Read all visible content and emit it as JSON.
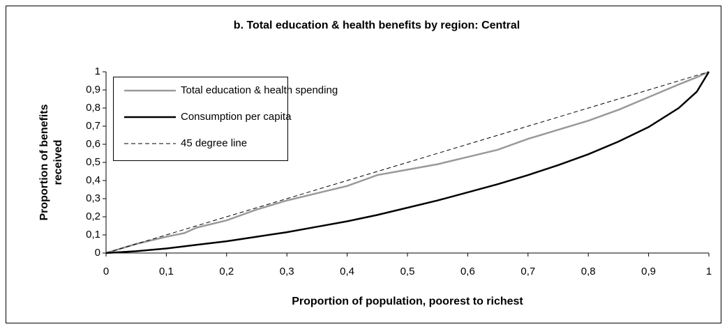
{
  "chart_data": {
    "type": "line",
    "title": "b. Total education & health benefits by region: Central",
    "xlabel": "Proportion of population, poorest to richest",
    "ylabel": [
      "Proportion of benefits",
      "received"
    ],
    "x": [
      0,
      0.05,
      0.1,
      0.13,
      0.15,
      0.2,
      0.25,
      0.3,
      0.35,
      0.4,
      0.45,
      0.5,
      0.55,
      0.6,
      0.65,
      0.7,
      0.75,
      0.8,
      0.85,
      0.9,
      0.95,
      0.98,
      1
    ],
    "series": [
      {
        "name": "Total education & health spending",
        "color": "#999999",
        "style": "solid",
        "values": [
          0,
          0.05,
          0.09,
          0.11,
          0.14,
          0.18,
          0.24,
          0.29,
          0.33,
          0.37,
          0.43,
          0.46,
          0.49,
          0.53,
          0.57,
          0.63,
          0.68,
          0.73,
          0.79,
          0.86,
          0.93,
          0.97,
          1
        ]
      },
      {
        "name": "Consumption per capita",
        "color": "#000000",
        "style": "solid",
        "values": [
          0,
          0.01,
          0.025,
          0.037,
          0.045,
          0.065,
          0.09,
          0.115,
          0.145,
          0.175,
          0.21,
          0.25,
          0.29,
          0.335,
          0.38,
          0.43,
          0.485,
          0.545,
          0.615,
          0.695,
          0.8,
          0.89,
          1
        ]
      },
      {
        "name": "45 degree line",
        "color": "#000000",
        "style": "dashed",
        "values": [
          0,
          0.05,
          0.1,
          0.13,
          0.15,
          0.2,
          0.25,
          0.3,
          0.35,
          0.4,
          0.45,
          0.5,
          0.55,
          0.6,
          0.65,
          0.7,
          0.75,
          0.8,
          0.85,
          0.9,
          0.95,
          0.98,
          1
        ]
      }
    ],
    "xlim": [
      0,
      1
    ],
    "ylim": [
      0,
      1
    ],
    "xticks": [
      0,
      {
        "value": 0.1,
        "label": "0,1"
      },
      {
        "value": 0.2,
        "label": "0,2"
      },
      {
        "value": 0.3,
        "label": "0,3"
      },
      {
        "value": 0.4,
        "label": "0,4"
      },
      {
        "value": 0.5,
        "label": "0,5"
      },
      {
        "value": 0.6,
        "label": "0,6"
      },
      {
        "value": 0.7,
        "label": "0,7"
      },
      {
        "value": 0.8,
        "label": "0,8"
      },
      {
        "value": 0.9,
        "label": "0,9"
      },
      1
    ],
    "yticks": [
      0,
      {
        "value": 0.1,
        "label": "0,1"
      },
      {
        "value": 0.2,
        "label": "0,2"
      },
      {
        "value": 0.3,
        "label": "0,3"
      },
      {
        "value": 0.4,
        "label": "0,4"
      },
      {
        "value": 0.5,
        "label": "0,5"
      },
      {
        "value": 0.6,
        "label": "0,6"
      },
      {
        "value": 0.7,
        "label": "0,7"
      },
      {
        "value": 0.8,
        "label": "0,8"
      },
      {
        "value": 0.9,
        "label": "0,9"
      },
      1
    ],
    "grid": false,
    "legend": "upper-left"
  }
}
